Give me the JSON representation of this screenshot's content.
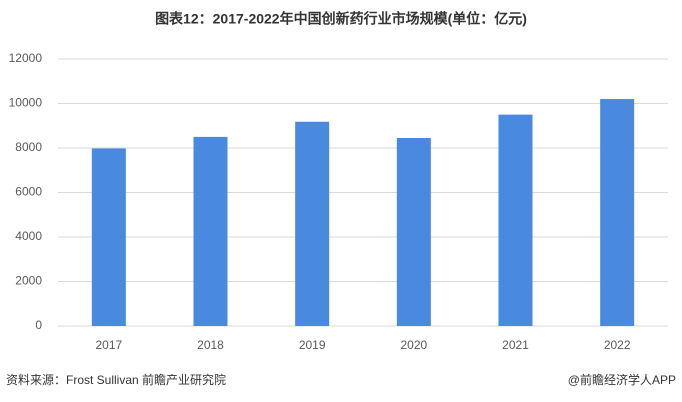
{
  "chart_data": {
    "type": "bar",
    "title": "图表12：2017-2022年中国创新药行业市场规模(单位：亿元)",
    "categories": [
      "2017",
      "2018",
      "2019",
      "2020",
      "2021",
      "2022"
    ],
    "values": [
      7980,
      8500,
      9180,
      8450,
      9500,
      10200
    ],
    "color": "#4a89e0",
    "ylim": [
      0,
      12000
    ],
    "yticks": [
      0,
      2000,
      4000,
      6000,
      8000,
      10000,
      12000
    ],
    "grid": true
  },
  "footer": {
    "source": "资料来源：Frost Sullivan 前瞻产业研究院",
    "brand": "@前瞻经济学人APP"
  }
}
